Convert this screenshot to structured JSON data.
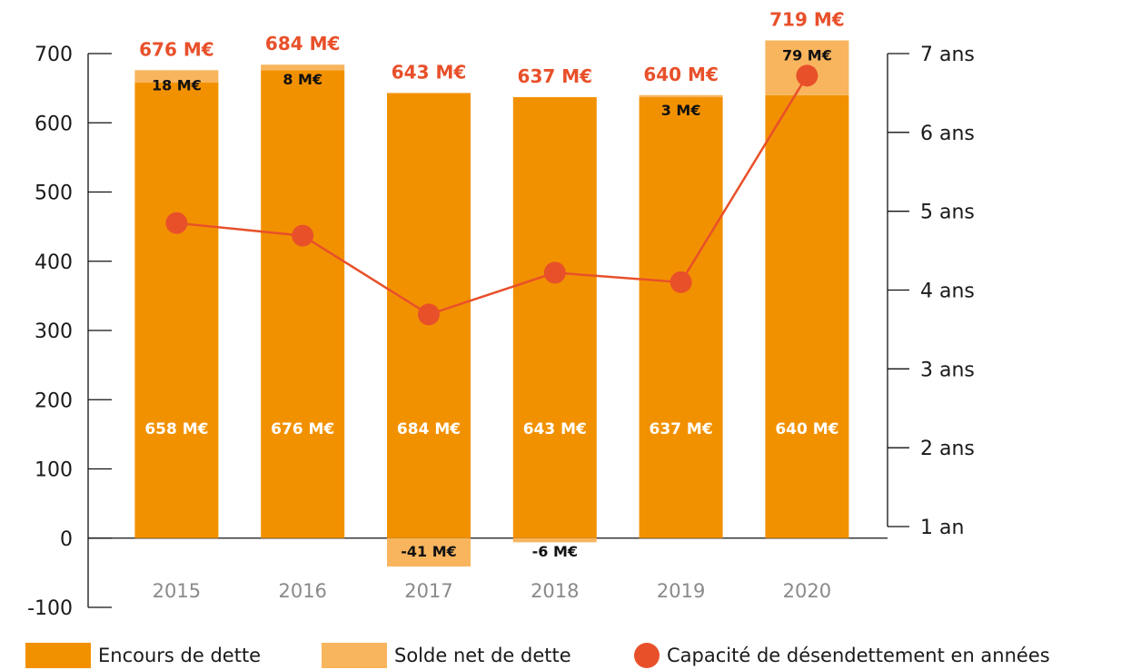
{
  "chart_data": {
    "type": "bar",
    "categories": [
      "2015",
      "2016",
      "2017",
      "2018",
      "2019",
      "2020"
    ],
    "series": [
      {
        "name": "Encours de dette",
        "values": [
          658,
          676,
          684,
          643,
          637,
          640
        ],
        "labels": [
          "658 M€",
          "676 M€",
          "684 M€",
          "643 M€",
          "637 M€",
          "640 M€"
        ],
        "color": "#f29100"
      },
      {
        "name": "Solde net de dette",
        "values": [
          18,
          8,
          -41,
          -6,
          3,
          79
        ],
        "labels": [
          "18 M€",
          "8 M€",
          "-41 M€",
          "-6 M€",
          "3 M€",
          "79 M€"
        ],
        "color": "#f8b55e"
      },
      {
        "name": "Capacité de désendettement en années",
        "values": [
          4.85,
          4.69,
          3.69,
          4.22,
          4.1,
          6.72
        ],
        "axis": "right",
        "color": "#e8502a"
      }
    ],
    "totals": {
      "values": [
        676,
        684,
        643,
        637,
        640,
        719
      ],
      "labels": [
        "676 M€",
        "684 M€",
        "643 M€",
        "637 M€",
        "640 M€",
        "719 M€"
      ]
    },
    "left_axis": {
      "ylim": [
        -100,
        700
      ],
      "ticks": [
        700,
        600,
        500,
        400,
        300,
        200,
        100,
        0,
        -100
      ],
      "tick_labels": [
        "700",
        "600",
        "500",
        "400",
        "300",
        "200",
        "100",
        "0",
        "-100"
      ]
    },
    "right_axis": {
      "ylim": [
        1,
        7
      ],
      "ticks": [
        7,
        6,
        5,
        4,
        3,
        2,
        1
      ],
      "tick_labels": [
        "7 ans",
        "6 ans",
        "5 ans",
        "4 ans",
        "3 ans",
        "2 ans",
        "1 an"
      ]
    },
    "grid": false,
    "legend_position": "bottom",
    "title": "",
    "xlabel": "",
    "ylabel": ""
  },
  "legend": {
    "items": [
      {
        "label": "Encours de dette",
        "color": "#f29100",
        "shape": "rect"
      },
      {
        "label": "Solde net de dette",
        "color": "#f8b55e",
        "shape": "rect"
      },
      {
        "label": "Capacité de désendettement en années",
        "color": "#e8502a",
        "shape": "circle"
      }
    ]
  }
}
